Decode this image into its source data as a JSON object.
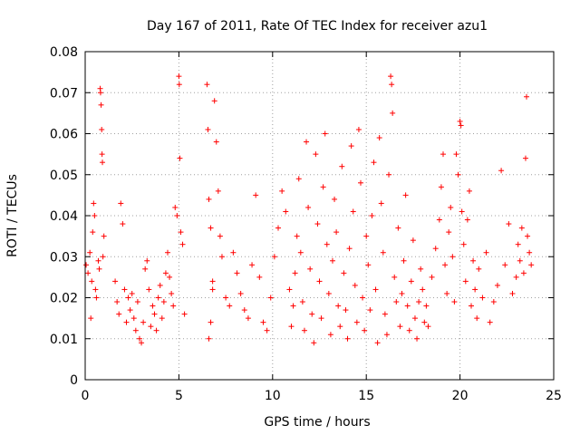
{
  "chart_data": {
    "type": "scatter",
    "title": "Day 167 of 2011, Rate Of TEC Index for receiver azu1",
    "xlabel": "GPS time / hours",
    "ylabel": "ROTI / TECUs",
    "xlim": [
      0,
      25
    ],
    "ylim": [
      0,
      0.08
    ],
    "xticks": [
      0,
      5,
      10,
      15,
      20,
      25
    ],
    "xtick_labels": [
      "0",
      "5",
      "10",
      "15",
      "20",
      "25"
    ],
    "yticks": [
      0,
      0.01,
      0.02,
      0.03,
      0.04,
      0.05,
      0.06,
      0.07,
      0.08
    ],
    "ytick_labels": [
      "0",
      "0.01",
      "0.02",
      "0.03",
      "0.04",
      "0.05",
      "0.06",
      "0.07",
      "0.08"
    ],
    "grid": true,
    "marker": "+",
    "color": "#ff0000",
    "series": [
      {
        "name": "ROTI",
        "points": [
          [
            0.05,
            0.028
          ],
          [
            0.15,
            0.026
          ],
          [
            0.25,
            0.031
          ],
          [
            0.3,
            0.015
          ],
          [
            0.35,
            0.024
          ],
          [
            0.4,
            0.036
          ],
          [
            0.45,
            0.043
          ],
          [
            0.5,
            0.04
          ],
          [
            0.55,
            0.022
          ],
          [
            0.6,
            0.02
          ],
          [
            0.7,
            0.029
          ],
          [
            0.75,
            0.027
          ],
          [
            0.8,
            0.071
          ],
          [
            0.82,
            0.07
          ],
          [
            0.85,
            0.067
          ],
          [
            0.88,
            0.061
          ],
          [
            0.9,
            0.055
          ],
          [
            0.92,
            0.053
          ],
          [
            0.95,
            0.03
          ],
          [
            1.0,
            0.035
          ],
          [
            1.6,
            0.024
          ],
          [
            1.7,
            0.019
          ],
          [
            1.8,
            0.016
          ],
          [
            1.9,
            0.043
          ],
          [
            2.0,
            0.038
          ],
          [
            2.1,
            0.022
          ],
          [
            2.2,
            0.014
          ],
          [
            2.3,
            0.02
          ],
          [
            2.4,
            0.017
          ],
          [
            2.5,
            0.021
          ],
          [
            2.6,
            0.015
          ],
          [
            2.7,
            0.012
          ],
          [
            2.8,
            0.019
          ],
          [
            2.9,
            0.01
          ],
          [
            3.0,
            0.009
          ],
          [
            3.1,
            0.014
          ],
          [
            3.2,
            0.027
          ],
          [
            3.3,
            0.029
          ],
          [
            3.4,
            0.022
          ],
          [
            3.5,
            0.013
          ],
          [
            3.6,
            0.018
          ],
          [
            3.7,
            0.016
          ],
          [
            3.8,
            0.012
          ],
          [
            3.9,
            0.02
          ],
          [
            4.0,
            0.023
          ],
          [
            4.1,
            0.015
          ],
          [
            4.2,
            0.019
          ],
          [
            4.3,
            0.026
          ],
          [
            4.4,
            0.031
          ],
          [
            4.5,
            0.025
          ],
          [
            4.6,
            0.021
          ],
          [
            4.7,
            0.018
          ],
          [
            4.8,
            0.042
          ],
          [
            4.9,
            0.04
          ],
          [
            5.0,
            0.074
          ],
          [
            5.02,
            0.072
          ],
          [
            5.05,
            0.054
          ],
          [
            5.1,
            0.036
          ],
          [
            5.2,
            0.033
          ],
          [
            5.3,
            0.016
          ],
          [
            6.5,
            0.072
          ],
          [
            6.55,
            0.061
          ],
          [
            6.6,
            0.044
          ],
          [
            6.7,
            0.037
          ],
          [
            6.8,
            0.024
          ],
          [
            6.9,
            0.068
          ],
          [
            7.0,
            0.058
          ],
          [
            7.1,
            0.046
          ],
          [
            7.2,
            0.035
          ],
          [
            7.3,
            0.03
          ],
          [
            6.6,
            0.01
          ],
          [
            6.7,
            0.014
          ],
          [
            6.8,
            0.022
          ],
          [
            7.5,
            0.02
          ],
          [
            7.7,
            0.018
          ],
          [
            7.9,
            0.031
          ],
          [
            8.1,
            0.026
          ],
          [
            8.3,
            0.021
          ],
          [
            8.5,
            0.017
          ],
          [
            8.7,
            0.015
          ],
          [
            8.9,
            0.028
          ],
          [
            9.1,
            0.045
          ],
          [
            9.3,
            0.025
          ],
          [
            9.5,
            0.014
          ],
          [
            9.7,
            0.012
          ],
          [
            9.9,
            0.02
          ],
          [
            10.1,
            0.03
          ],
          [
            10.3,
            0.037
          ],
          [
            10.5,
            0.046
          ],
          [
            10.7,
            0.041
          ],
          [
            10.9,
            0.022
          ],
          [
            11.0,
            0.013
          ],
          [
            11.1,
            0.018
          ],
          [
            11.2,
            0.026
          ],
          [
            11.3,
            0.035
          ],
          [
            11.4,
            0.049
          ],
          [
            11.5,
            0.031
          ],
          [
            11.6,
            0.019
          ],
          [
            11.7,
            0.012
          ],
          [
            11.8,
            0.058
          ],
          [
            11.9,
            0.042
          ],
          [
            12.0,
            0.027
          ],
          [
            12.1,
            0.016
          ],
          [
            12.2,
            0.009
          ],
          [
            12.3,
            0.055
          ],
          [
            12.4,
            0.038
          ],
          [
            12.5,
            0.024
          ],
          [
            12.6,
            0.015
          ],
          [
            12.7,
            0.047
          ],
          [
            12.8,
            0.06
          ],
          [
            12.9,
            0.033
          ],
          [
            13.0,
            0.021
          ],
          [
            13.1,
            0.011
          ],
          [
            13.2,
            0.029
          ],
          [
            13.3,
            0.044
          ],
          [
            13.4,
            0.036
          ],
          [
            13.5,
            0.018
          ],
          [
            13.6,
            0.013
          ],
          [
            13.7,
            0.052
          ],
          [
            13.8,
            0.026
          ],
          [
            13.9,
            0.017
          ],
          [
            14.0,
            0.01
          ],
          [
            14.1,
            0.032
          ],
          [
            14.2,
            0.057
          ],
          [
            14.3,
            0.041
          ],
          [
            14.4,
            0.023
          ],
          [
            14.5,
            0.014
          ],
          [
            14.6,
            0.061
          ],
          [
            14.7,
            0.048
          ],
          [
            14.8,
            0.02
          ],
          [
            14.9,
            0.012
          ],
          [
            15.0,
            0.035
          ],
          [
            15.1,
            0.028
          ],
          [
            15.2,
            0.017
          ],
          [
            15.3,
            0.04
          ],
          [
            15.4,
            0.053
          ],
          [
            15.5,
            0.022
          ],
          [
            15.6,
            0.009
          ],
          [
            15.7,
            0.059
          ],
          [
            15.8,
            0.043
          ],
          [
            15.9,
            0.031
          ],
          [
            16.0,
            0.016
          ],
          [
            16.1,
            0.011
          ],
          [
            16.2,
            0.05
          ],
          [
            16.3,
            0.074
          ],
          [
            16.35,
            0.072
          ],
          [
            16.4,
            0.065
          ],
          [
            16.5,
            0.025
          ],
          [
            16.6,
            0.019
          ],
          [
            16.7,
            0.037
          ],
          [
            16.8,
            0.013
          ],
          [
            16.9,
            0.021
          ],
          [
            17.0,
            0.029
          ],
          [
            17.1,
            0.045
          ],
          [
            17.2,
            0.018
          ],
          [
            17.3,
            0.012
          ],
          [
            17.4,
            0.024
          ],
          [
            17.5,
            0.034
          ],
          [
            17.6,
            0.015
          ],
          [
            17.7,
            0.01
          ],
          [
            17.8,
            0.019
          ],
          [
            17.9,
            0.027
          ],
          [
            18.0,
            0.022
          ],
          [
            18.1,
            0.014
          ],
          [
            18.2,
            0.018
          ],
          [
            18.3,
            0.013
          ],
          [
            18.5,
            0.025
          ],
          [
            18.7,
            0.032
          ],
          [
            18.9,
            0.039
          ],
          [
            19.0,
            0.047
          ],
          [
            19.1,
            0.055
          ],
          [
            19.2,
            0.028
          ],
          [
            19.3,
            0.021
          ],
          [
            19.4,
            0.036
          ],
          [
            19.5,
            0.042
          ],
          [
            19.6,
            0.03
          ],
          [
            19.7,
            0.019
          ],
          [
            19.8,
            0.055
          ],
          [
            19.9,
            0.05
          ],
          [
            20.0,
            0.063
          ],
          [
            20.05,
            0.062
          ],
          [
            20.1,
            0.041
          ],
          [
            20.2,
            0.033
          ],
          [
            20.3,
            0.024
          ],
          [
            20.4,
            0.039
          ],
          [
            20.5,
            0.046
          ],
          [
            20.6,
            0.018
          ],
          [
            20.7,
            0.029
          ],
          [
            20.8,
            0.022
          ],
          [
            20.9,
            0.015
          ],
          [
            21.0,
            0.027
          ],
          [
            21.2,
            0.02
          ],
          [
            21.4,
            0.031
          ],
          [
            21.6,
            0.014
          ],
          [
            21.8,
            0.019
          ],
          [
            22.0,
            0.023
          ],
          [
            22.2,
            0.051
          ],
          [
            22.4,
            0.028
          ],
          [
            22.6,
            0.038
          ],
          [
            22.8,
            0.021
          ],
          [
            23.0,
            0.025
          ],
          [
            23.1,
            0.033
          ],
          [
            23.2,
            0.029
          ],
          [
            23.3,
            0.037
          ],
          [
            23.4,
            0.026
          ],
          [
            23.5,
            0.054
          ],
          [
            23.55,
            0.069
          ],
          [
            23.6,
            0.035
          ],
          [
            23.7,
            0.031
          ],
          [
            23.8,
            0.028
          ]
        ]
      }
    ]
  }
}
